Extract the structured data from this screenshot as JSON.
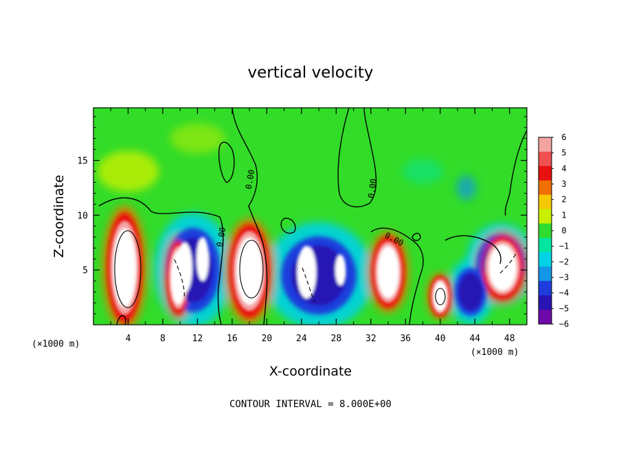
{
  "chart_data": {
    "type": "heatmap",
    "title": "vertical velocity",
    "xlabel": "X-coordinate",
    "ylabel": "Z-coordinate",
    "x_unit": "(×1000 m)",
    "y_unit": "(×1000 m)",
    "xlim": [
      0,
      50
    ],
    "ylim": [
      0,
      19.8
    ],
    "x_ticks": [
      "4",
      "8",
      "12",
      "16",
      "20",
      "24",
      "28",
      "32",
      "36",
      "40",
      "44",
      "48"
    ],
    "x_tick_values": [
      4,
      8,
      12,
      16,
      20,
      24,
      28,
      32,
      36,
      40,
      44,
      48
    ],
    "y_ticks": [
      "5",
      "10",
      "15"
    ],
    "y_tick_values": [
      5,
      10,
      15
    ],
    "colorbar": {
      "labels": [
        "6",
        "5",
        "4",
        "3",
        "2",
        "1",
        "0",
        "−1",
        "−2",
        "−3",
        "−4",
        "−5",
        "−6"
      ],
      "colors": [
        "#f4a3a3",
        "#f05050",
        "#e81010",
        "#f27000",
        "#f6c800",
        "#c8f000",
        "#30dc30",
        "#00e6a0",
        "#00d2e6",
        "#1496e6",
        "#1e3cdc",
        "#2814b4",
        "#6e0aaa"
      ]
    },
    "contour_label": "0.00",
    "background_value_color": "#32dc28",
    "updraft_cores": [
      {
        "x": 3.6,
        "z": 5.2,
        "w": 3.0,
        "h": 8.6
      },
      {
        "x": 9.8,
        "z": 4.3,
        "w": 2.0,
        "h": 5.8
      },
      {
        "x": 18.0,
        "z": 4.9,
        "w": 3.4,
        "h": 7.3
      },
      {
        "x": 34.0,
        "z": 4.8,
        "w": 2.8,
        "h": 5.6
      },
      {
        "x": 40.0,
        "z": 2.6,
        "w": 1.8,
        "h": 3.2
      },
      {
        "x": 47.2,
        "z": 5.2,
        "w": 3.6,
        "h": 5.0
      }
    ],
    "downdraft_zones": [
      {
        "x": 11.5,
        "z": 5.0,
        "w": 5.0,
        "h": 7.0
      },
      {
        "x": 26.0,
        "z": 4.5,
        "w": 7.0,
        "h": 6.5
      },
      {
        "x": 43.5,
        "z": 3.0,
        "w": 3.0,
        "h": 4.0
      },
      {
        "x": 47.0,
        "z": 5.5,
        "w": 4.5,
        "h": 5.0
      }
    ],
    "grid": false,
    "note": "CONTOUR INTERVAL = 8.000E+00"
  }
}
